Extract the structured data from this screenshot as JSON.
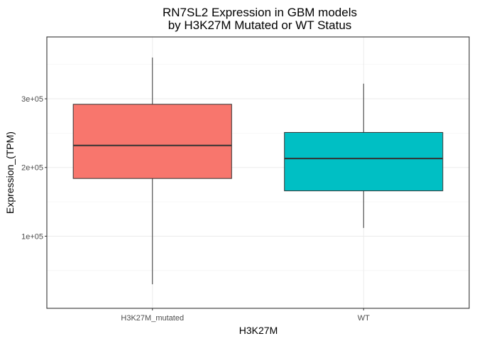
{
  "chart_data": {
    "type": "boxplot",
    "title_lines": [
      "RN7SL2 Expression in GBM models",
      "by H3K27M Mutated or WT Status"
    ],
    "xlabel": "H3K27M",
    "ylabel": "Expression_(TPM)",
    "categories": [
      "H3K27M_mutated",
      "WT"
    ],
    "ylim": [
      -5000,
      390000
    ],
    "yticks": [
      100000,
      200000,
      300000
    ],
    "ytick_labels": [
      "1e+05",
      "2e+05",
      "3e+05"
    ],
    "grid": true,
    "boxes": [
      {
        "category": "H3K27M_mutated",
        "min": 30000,
        "q1": 184000,
        "median": 232000,
        "q3": 292000,
        "max": 360000,
        "color": "#F8766D"
      },
      {
        "category": "WT",
        "min": 112000,
        "q1": 166000,
        "median": 213000,
        "q3": 251000,
        "max": 322000,
        "color": "#00BFC4"
      }
    ]
  }
}
